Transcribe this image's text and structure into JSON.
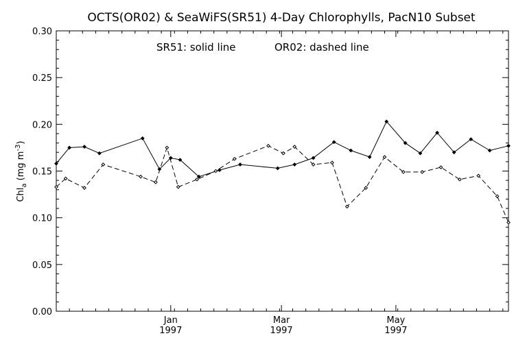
{
  "chart_data": {
    "type": "line",
    "title": "OCTS(OR02) & SeaWiFS(SR51) 4-Day Chlorophylls, PacN10 Subset",
    "annotation_sr": "SR51: solid line",
    "annotation_or": "OR02: dashed line",
    "ylabel": "Chl_a (mg m^-3)",
    "ylabel_parts": {
      "main": "Chl",
      "sub": "a",
      "units_open": " (mg m",
      "sup": "-3",
      "units_close": ")"
    },
    "ylim": [
      0.0,
      0.3
    ],
    "xlim": [
      "1996-11-01",
      "1997-06-30"
    ],
    "yticks": [
      "0.00",
      "0.05",
      "0.10",
      "0.15",
      "0.20",
      "0.25",
      "0.30"
    ],
    "xticks": [
      {
        "date": "1997-01-01",
        "label": "Jan",
        "year": "1997"
      },
      {
        "date": "1997-03-01",
        "label": "Mar",
        "year": "1997"
      },
      {
        "date": "1997-05-01",
        "label": "May",
        "year": "1997"
      }
    ],
    "series": [
      {
        "name": "SR51",
        "style": "solid",
        "x": [
          "1996-11-01",
          "1996-11-08",
          "1996-11-16",
          "1996-11-24",
          "1996-12-17",
          "1996-12-26",
          "1997-01-01",
          "1997-01-06",
          "1997-01-16",
          "1997-01-27",
          "1997-02-07",
          "1997-02-27",
          "1997-03-08",
          "1997-03-18",
          "1997-03-29",
          "1997-04-07",
          "1997-04-17",
          "1997-04-26",
          "1997-05-06",
          "1997-05-14",
          "1997-05-23",
          "1997-06-01",
          "1997-06-10",
          "1997-06-20",
          "1997-06-30"
        ],
        "values": [
          0.158,
          0.175,
          0.176,
          0.169,
          0.185,
          0.152,
          0.164,
          0.162,
          0.144,
          0.151,
          0.157,
          0.153,
          0.157,
          0.164,
          0.181,
          0.172,
          0.165,
          0.203,
          0.18,
          0.169,
          0.191,
          0.17,
          0.184,
          0.172,
          0.177
        ]
      },
      {
        "name": "OR02",
        "style": "dashed",
        "x": [
          "1996-11-01",
          "1996-11-06",
          "1996-11-16",
          "1996-11-26",
          "1996-12-16",
          "1996-12-24",
          "1996-12-30",
          "1997-01-05",
          "1997-01-15",
          "1997-01-25",
          "1997-02-04",
          "1997-02-22",
          "1997-03-02",
          "1997-03-08",
          "1997-03-18",
          "1997-03-28",
          "1997-04-05",
          "1997-04-15",
          "1997-04-25",
          "1997-05-05",
          "1997-05-15",
          "1997-05-25",
          "1997-06-04",
          "1997-06-14",
          "1997-06-24",
          "1997-06-30"
        ],
        "values": [
          0.133,
          0.142,
          0.132,
          0.157,
          0.144,
          0.138,
          0.175,
          0.133,
          0.141,
          0.15,
          0.163,
          0.177,
          0.169,
          0.176,
          0.157,
          0.159,
          0.112,
          0.132,
          0.165,
          0.149,
          0.149,
          0.154,
          0.141,
          0.145,
          0.123,
          0.095
        ]
      }
    ]
  }
}
